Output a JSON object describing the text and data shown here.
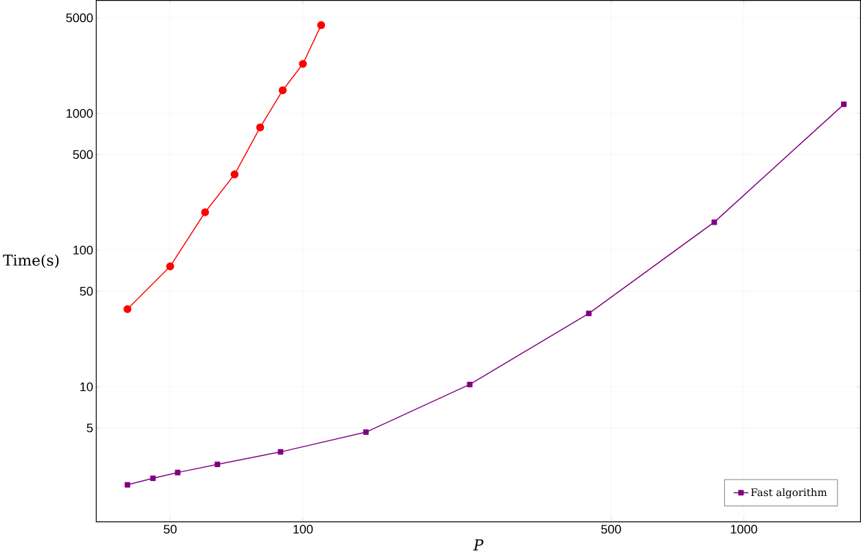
{
  "chart_data": {
    "type": "line",
    "xlabel": "P",
    "ylabel": "Time(s)",
    "log": "xy",
    "grid": true,
    "legend": "bottom right",
    "xlim": [
      34,
      1840
    ],
    "ylim": [
      1.03,
      6700
    ],
    "xticks": [
      50,
      100,
      500,
      1000
    ],
    "yticks": [
      5,
      10,
      50,
      100,
      500,
      1000,
      5000
    ],
    "series": [
      {
        "color": "#ff0000",
        "marker": "circle",
        "x": [
          40,
          50,
          60,
          70,
          80,
          90,
          100,
          110
        ],
        "values": [
          37,
          76,
          189,
          358,
          790,
          1475,
          2300,
          4420
        ]
      },
      {
        "name": "Fast algorithm",
        "color": "#800080",
        "marker": "square",
        "x": [
          40,
          45.7,
          52,
          64,
          89,
          139,
          239,
          445,
          857,
          1686
        ],
        "values": [
          1.92,
          2.14,
          2.36,
          2.71,
          3.34,
          4.66,
          10.4,
          34.4,
          160,
          1165
        ]
      }
    ]
  }
}
